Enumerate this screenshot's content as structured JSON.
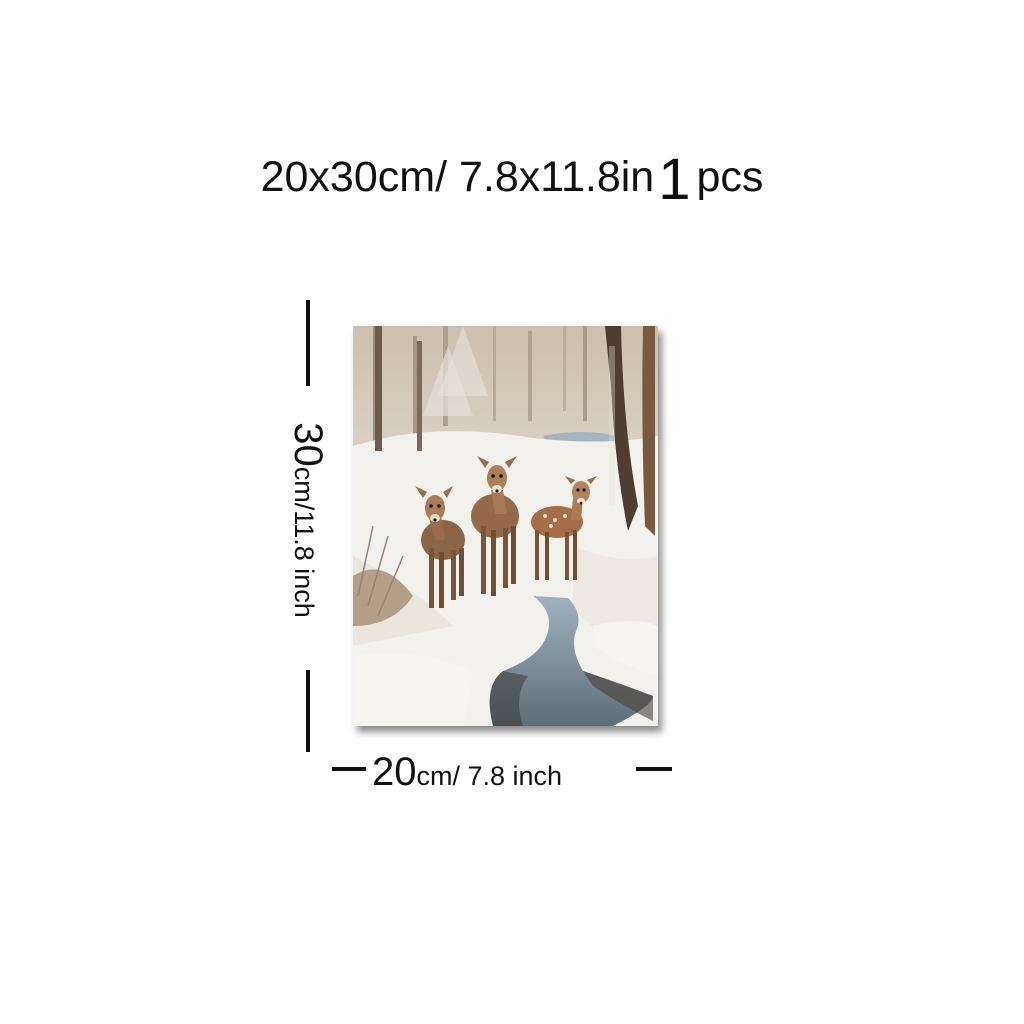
{
  "headline": {
    "size": "20x30cm/ 7.8x11.8in",
    "count": "1",
    "unit": "pcs"
  },
  "dimensions": {
    "height_value": "30",
    "height_unit": "cm/11.8 inch",
    "width_value": "20",
    "width_unit": "cm/ 7.8 inch"
  },
  "colors": {
    "text": "#111111",
    "background": "#ffffff",
    "snow": "#f3f1ec",
    "water": "#8ea3b3",
    "deer": "#9a6a44"
  }
}
